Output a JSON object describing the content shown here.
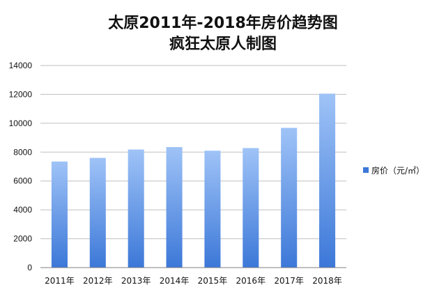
{
  "chart_data": {
    "type": "bar",
    "title": "太原2011年-2018年房价趋势图",
    "subtitle": "疯狂太原人制图",
    "categories": [
      "2011年",
      "2012年",
      "2013年",
      "2014年",
      "2015年",
      "2016年",
      "2017年",
      "2018年"
    ],
    "series": [
      {
        "name": "房价（元/㎡）",
        "values": [
          7350,
          7600,
          8180,
          8350,
          8100,
          8280,
          9680,
          12050
        ]
      }
    ],
    "ylim": [
      0,
      14000
    ],
    "yticks": [
      "0",
      "2000",
      "4000",
      "6000",
      "8000",
      "10000",
      "12000",
      "14000"
    ],
    "grid": true,
    "legend_position": "right",
    "colors": {
      "bar_top": "#9fc3f7",
      "bar_bottom": "#3c78d8",
      "grid": "#bfbfbf",
      "axis": "#7f7f7f"
    }
  }
}
